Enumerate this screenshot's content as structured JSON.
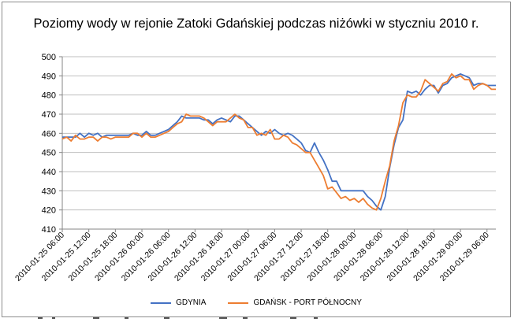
{
  "chart_data": {
    "type": "line",
    "title": "Poziomy wody w rejonie Zatoki Gdańskiej podczas niżówki w styczniu 2010 r.",
    "xlabel": "",
    "ylabel": "",
    "ylim": [
      410,
      500
    ],
    "yticks": [
      410,
      420,
      430,
      440,
      450,
      460,
      470,
      480,
      490,
      500
    ],
    "grid": "horizontal",
    "legend_position": "bottom",
    "x_start": "2010-01-25 06:00",
    "x_step_hours": 1,
    "xtick_labels": [
      "2010-01-25 06:00",
      "2010-01-25 12:00",
      "2010-01-25 18:00",
      "2010-01-26 00:00",
      "2010-01-26 06:00",
      "2010-01-26 12:00",
      "2010-01-26 18:00",
      "2010-01-27 00:00",
      "2010-01-27 06:00",
      "2010-01-27 12:00",
      "2010-01-27 18:00",
      "2010-01-28 00:00",
      "2010-01-28 06:00",
      "2010-01-28 12:00",
      "2010-01-28 18:00",
      "2010-01-29 00:00",
      "2010-01-29 06:00"
    ],
    "series": [
      {
        "name": "GDYNIA",
        "color": "#4472c4",
        "values": [
          458,
          458,
          458,
          458,
          460,
          458,
          460,
          459,
          460,
          458,
          459,
          459,
          459,
          459,
          459,
          459,
          460,
          459,
          459,
          461,
          459,
          459,
          460,
          461,
          462,
          464,
          466,
          469,
          468,
          468,
          468,
          468,
          467,
          467,
          465,
          467,
          468,
          467,
          466,
          469,
          469,
          467,
          465,
          463,
          461,
          459,
          461,
          460,
          462,
          460,
          459,
          460,
          459,
          457,
          455,
          451,
          450,
          455,
          450,
          446,
          441,
          435,
          435,
          430,
          430,
          430,
          430,
          430,
          430,
          427,
          425,
          422,
          420,
          427,
          442,
          454,
          463,
          467,
          482,
          481,
          482,
          480,
          483,
          485,
          485,
          481,
          485,
          486,
          489,
          490,
          491,
          490,
          489,
          485,
          486,
          486,
          485,
          485,
          485
        ]
      },
      {
        "name": "GDAŃSK - PORT PÓŁNOCNY",
        "color": "#ed7d31",
        "values": [
          457,
          458,
          456,
          459,
          457,
          457,
          458,
          458,
          456,
          458,
          458,
          457,
          458,
          458,
          458,
          458,
          460,
          460,
          458,
          460,
          458,
          458,
          459,
          460,
          461,
          463,
          465,
          466,
          470,
          469,
          469,
          469,
          468,
          466,
          464,
          466,
          466,
          466,
          468,
          470,
          468,
          467,
          463,
          463,
          459,
          460,
          459,
          462,
          457,
          457,
          459,
          458,
          455,
          454,
          452,
          450,
          450,
          446,
          442,
          438,
          431,
          432,
          429,
          426,
          427,
          425,
          426,
          424,
          426,
          423,
          421,
          420,
          426,
          435,
          443,
          456,
          464,
          476,
          480,
          479,
          479,
          482,
          488,
          486,
          484,
          482,
          486,
          487,
          491,
          489,
          490,
          488,
          488,
          483,
          485,
          486,
          485,
          483,
          483
        ]
      }
    ]
  }
}
